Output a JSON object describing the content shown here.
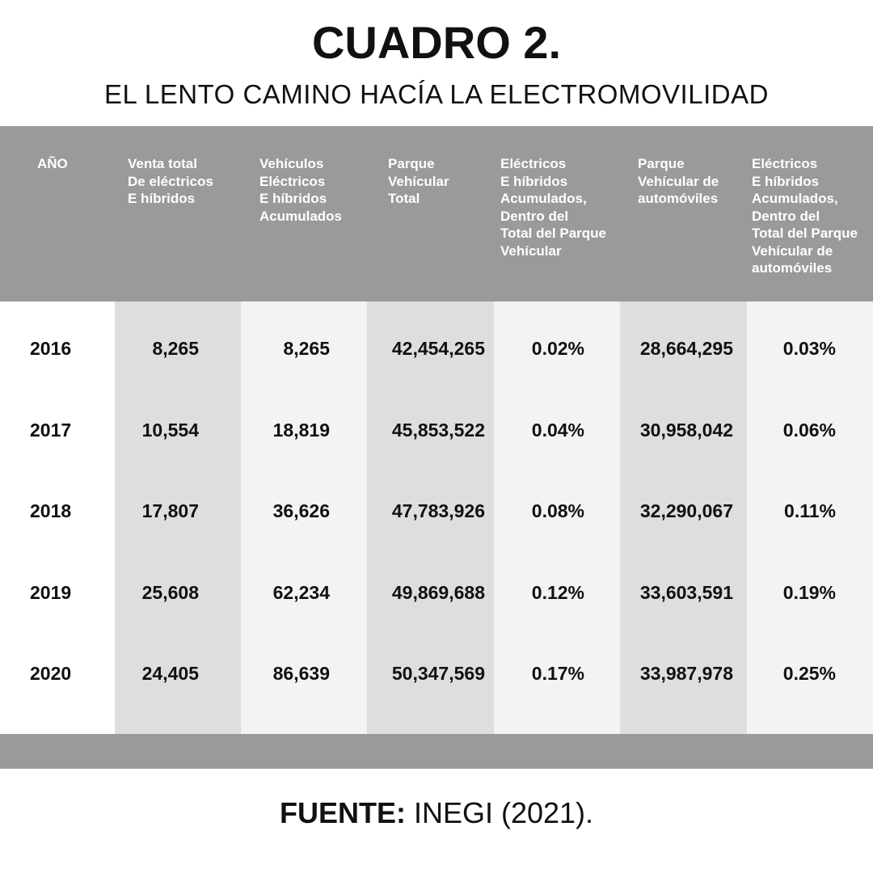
{
  "title": "CUADRO 2.",
  "subtitle": "EL LENTO CAMINO HACÍA LA ELECTROMOVILIDAD",
  "table": {
    "headers": [
      "AÑO",
      "Venta total\nDe eléctricos\nE híbridos",
      "Vehículos\n Eléctricos\nE híbridos\nAcumulados",
      "Parque\nVehícular\nTotal",
      "Eléctricos\nE híbridos\nAcumulados,\nDentro del\nTotal del Parque\nVehícular",
      "Parque\nVehícular de\nautomóviles",
      "Eléctricos\nE híbridos\nAcumulados,\nDentro del\nTotal del Parque\nVehícular de\nautomóviles"
    ],
    "rows": [
      [
        "2016",
        "8,265",
        "8,265",
        "42,454,265",
        "0.02%",
        "28,664,295",
        "0.03%"
      ],
      [
        "2017",
        "10,554",
        "18,819",
        "45,853,522",
        "0.04%",
        "30,958,042",
        "0.06%"
      ],
      [
        "2018",
        "17,807",
        "36,626",
        "47,783,926",
        "0.08%",
        "32,290,067",
        "0.11%"
      ],
      [
        "2019",
        "25,608",
        "62,234",
        "49,869,688",
        "0.12%",
        "33,603,591",
        "0.19%"
      ],
      [
        "2020",
        "24,405",
        "86,639",
        "50,347,569",
        "0.17%",
        "33,987,978",
        "0.25%"
      ]
    ]
  },
  "source": {
    "label": "FUENTE:",
    "text": " INEGI (2021)."
  },
  "colors": {
    "header_band": "#9a9a9a",
    "column_dark": "#dedede",
    "column_light": "#f3f3f3"
  }
}
